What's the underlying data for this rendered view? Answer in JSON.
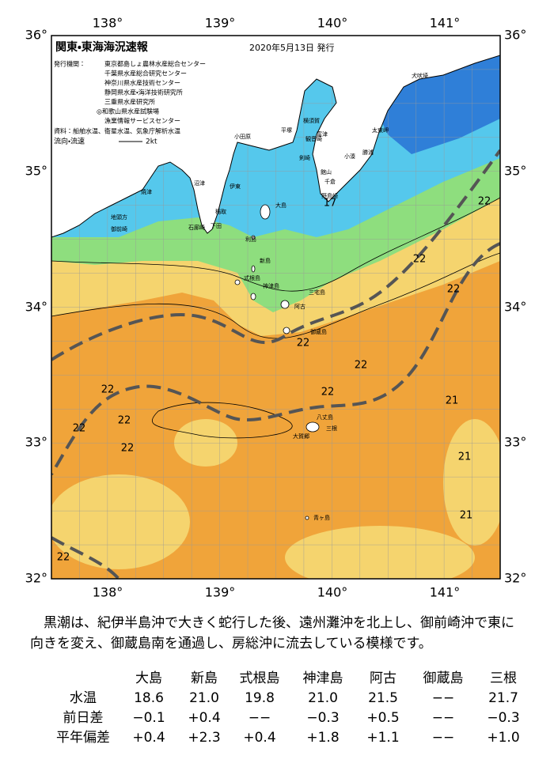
{
  "map": {
    "title": "関東・東海海況速報",
    "issued": "2020年5月13日 発行",
    "agencies_label": "発行機関：",
    "agencies": [
      "東京都島しょ農林水産総合センター",
      "千葉県水産総合研究センター",
      "神奈川県水産技術センター",
      "静岡県水産・海洋技術研究所",
      "三重県水産研究所",
      "◎和歌山県水産試験場",
      "漁業情報サービスセンター"
    ],
    "sources_label": "資料：",
    "sources": "船舶水温、衛星水温、気象庁解析水温",
    "current_label": "流向・流速",
    "current_unit": "2kt",
    "longitudes": [
      "138°",
      "139°",
      "140°",
      "141°"
    ],
    "latitudes": [
      "36°",
      "35°",
      "34°",
      "33°",
      "32°"
    ],
    "places": [
      "犬吠埼",
      "太東岬",
      "勝浦",
      "小湊",
      "千倉",
      "館山",
      "野島崎",
      "富津",
      "横須賀",
      "観音崎",
      "剣崎",
      "平塚",
      "小田原",
      "伊東",
      "稲取",
      "下田",
      "石廊崎",
      "沼津",
      "焼津",
      "地頭方",
      "御前崎",
      "大島",
      "利島",
      "新島",
      "式根島",
      "神津島",
      "三宅島",
      "阿古",
      "御蔵島",
      "八丈島",
      "三根",
      "大賀郷",
      "青ヶ島"
    ],
    "isotherm_labels": [
      "22",
      "22",
      "22",
      "22",
      "22",
      "22",
      "22",
      "22",
      "22",
      "22",
      "22",
      "21",
      "21",
      "21",
      "17"
    ]
  },
  "description": [
    "黒潮は、紀伊半島沖で大きく蛇行した後、遠州灘沖を北上し、御前崎沖で東に",
    "向きを変え、御蔵島南を通過し、房総沖に流去している模様です。"
  ],
  "table": {
    "columns": [
      "大島",
      "新島",
      "式根島",
      "神津島",
      "阿古",
      "御蔵島",
      "三根"
    ],
    "rows": [
      {
        "label": "水温",
        "cells": [
          "18.6",
          "21.0",
          "19.8",
          "21.0",
          "21.5",
          "−−",
          "21.7"
        ]
      },
      {
        "label": "前日差",
        "cells": [
          "−0.1",
          "+0.4",
          "−−",
          "−0.3",
          "+0.5",
          "−−",
          "−0.3"
        ]
      },
      {
        "label": "平年偏差",
        "cells": [
          "+0.4",
          "+2.3",
          "+0.4",
          "+1.8",
          "+1.1",
          "−−",
          "+1.0"
        ]
      }
    ]
  }
}
